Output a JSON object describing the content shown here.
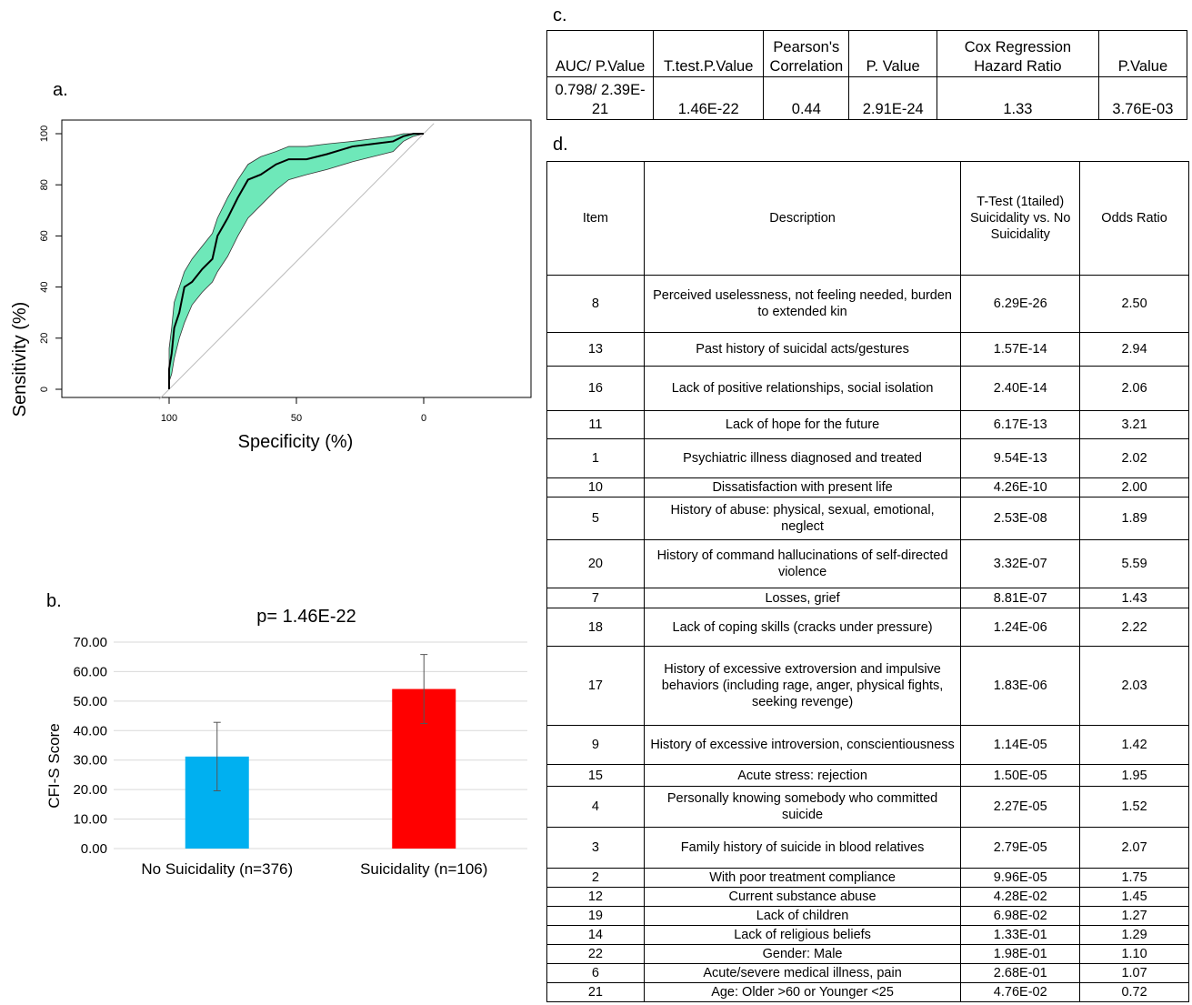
{
  "panels": {
    "a": "a.",
    "b": "b.",
    "c": "c.",
    "d": "d."
  },
  "chart_data": [
    {
      "type": "line",
      "subtype": "roc-curve-with-confidence-band",
      "xlabel": "Specificity (%)",
      "ylabel": "Sensitivity (%)",
      "xlim": [
        100,
        0
      ],
      "ylim": [
        0,
        100
      ],
      "x_ticks": [
        "100",
        "50",
        "0"
      ],
      "y_ticks": [
        "0",
        "20",
        "40",
        "60",
        "80",
        "100"
      ],
      "reference_line": "diagonal",
      "band_color": "#6ee8b9",
      "line_color": "#000000",
      "points": [
        {
          "x": 100,
          "y": 0,
          "lo": 0,
          "hi": 0
        },
        {
          "x": 100,
          "y": 8,
          "lo": 3,
          "hi": 16
        },
        {
          "x": 99,
          "y": 14,
          "lo": 6,
          "hi": 24
        },
        {
          "x": 98,
          "y": 24,
          "lo": 12,
          "hi": 34
        },
        {
          "x": 96,
          "y": 30,
          "lo": 20,
          "hi": 40
        },
        {
          "x": 94,
          "y": 40,
          "lo": 26,
          "hi": 46
        },
        {
          "x": 91,
          "y": 42,
          "lo": 33,
          "hi": 51
        },
        {
          "x": 87,
          "y": 47,
          "lo": 38,
          "hi": 56
        },
        {
          "x": 83,
          "y": 51,
          "lo": 42,
          "hi": 61
        },
        {
          "x": 81,
          "y": 60,
          "lo": 46,
          "hi": 67
        },
        {
          "x": 77,
          "y": 67,
          "lo": 52,
          "hi": 75
        },
        {
          "x": 73,
          "y": 75,
          "lo": 60,
          "hi": 82
        },
        {
          "x": 69,
          "y": 82,
          "lo": 67,
          "hi": 88
        },
        {
          "x": 64,
          "y": 84,
          "lo": 72,
          "hi": 91
        },
        {
          "x": 58,
          "y": 88,
          "lo": 78,
          "hi": 93
        },
        {
          "x": 53,
          "y": 90,
          "lo": 82,
          "hi": 95
        },
        {
          "x": 46,
          "y": 90,
          "lo": 84,
          "hi": 95
        },
        {
          "x": 38,
          "y": 92,
          "lo": 86,
          "hi": 96
        },
        {
          "x": 28,
          "y": 95,
          "lo": 89,
          "hi": 97
        },
        {
          "x": 20,
          "y": 96,
          "lo": 91,
          "hi": 98
        },
        {
          "x": 12,
          "y": 97,
          "lo": 93,
          "hi": 99
        },
        {
          "x": 8,
          "y": 99,
          "lo": 97,
          "hi": 100
        },
        {
          "x": 4,
          "y": 100,
          "lo": 99,
          "hi": 100
        },
        {
          "x": 0,
          "y": 100,
          "lo": 100,
          "hi": 100
        }
      ]
    },
    {
      "type": "bar",
      "title": "p= 1.46E-22",
      "ylabel": "CFI-S  Score",
      "ylim": [
        0,
        70
      ],
      "y_ticks": [
        "0.00",
        "10.00",
        "20.00",
        "30.00",
        "40.00",
        "50.00",
        "60.00",
        "70.00"
      ],
      "grid": true,
      "categories": [
        "No Suicidality (n=376)",
        "Suicidality (n=106)"
      ],
      "values": [
        31.2,
        54.1
      ],
      "errors": [
        11.6,
        11.7
      ],
      "colors": [
        "#00b0f0",
        "#ff0000"
      ]
    }
  ],
  "table_c": {
    "headers": [
      "AUC/ P.Value",
      "T.test.P.Value",
      "Pearson's Correlation",
      "P. Value",
      "Cox Regression Hazard Ratio",
      "P.Value"
    ],
    "values": [
      "0.798/ 2.39E-21",
      "1.46E-22",
      "0.44",
      "2.91E-24",
      "1.33",
      "3.76E-03"
    ]
  },
  "table_d": {
    "headers": [
      "Item",
      "Description",
      "T-Test (1tailed) Suicidality vs. No Suicidality",
      "Odds Ratio"
    ],
    "rows": [
      [
        "8",
        "Perceived uselessness, not feeling needed, burden to extended kin",
        "6.29E-26",
        "2.50"
      ],
      [
        "13",
        "Past history of suicidal acts/gestures",
        "1.57E-14",
        "2.94"
      ],
      [
        "16",
        "Lack of positive relationships, social isolation",
        "2.40E-14",
        "2.06"
      ],
      [
        "11",
        "Lack of hope for the future",
        "6.17E-13",
        "3.21"
      ],
      [
        "1",
        "Psychiatric illness diagnosed and treated",
        "9.54E-13",
        "2.02"
      ],
      [
        "10",
        "Dissatisfaction with  present life",
        "4.26E-10",
        "2.00"
      ],
      [
        "5",
        "History of abuse: physical, sexual, emotional, neglect",
        "2.53E-08",
        "1.89"
      ],
      [
        "20",
        "History of command hallucinations of self-directed violence",
        "3.32E-07",
        "5.59"
      ],
      [
        "7",
        "Losses, grief",
        "8.81E-07",
        "1.43"
      ],
      [
        "18",
        "Lack of coping skills (cracks under pressure)",
        "1.24E-06",
        "2.22"
      ],
      [
        "17",
        "History of excessive extroversion  and impulsive behaviors (including rage, anger, physical fights, seeking revenge)",
        "1.83E-06",
        "2.03"
      ],
      [
        "9",
        "History of excessive introversion, conscientiousness",
        "1.14E-05",
        "1.42"
      ],
      [
        "15",
        "Acute stress: rejection",
        "1.50E-05",
        "1.95"
      ],
      [
        "4",
        "Personally knowing somebody who committed suicide",
        "2.27E-05",
        "1.52"
      ],
      [
        "3",
        "Family history of suicide in blood relatives",
        "2.79E-05",
        "2.07"
      ],
      [
        "2",
        "With poor treatment compliance",
        "9.96E-05",
        "1.75"
      ],
      [
        "12",
        "Current substance abuse",
        "4.28E-02",
        "1.45"
      ],
      [
        "19",
        "Lack of children",
        "6.98E-02",
        "1.27"
      ],
      [
        "14",
        "Lack of religious beliefs",
        "1.33E-01",
        "1.29"
      ],
      [
        "22",
        "Gender: Male",
        "1.98E-01",
        "1.10"
      ],
      [
        "6",
        "Acute/severe medical illness, pain",
        "2.68E-01",
        "1.07"
      ],
      [
        "21",
        "Age: Older >60 or Younger <25",
        "4.76E-02",
        "0.72"
      ]
    ]
  }
}
